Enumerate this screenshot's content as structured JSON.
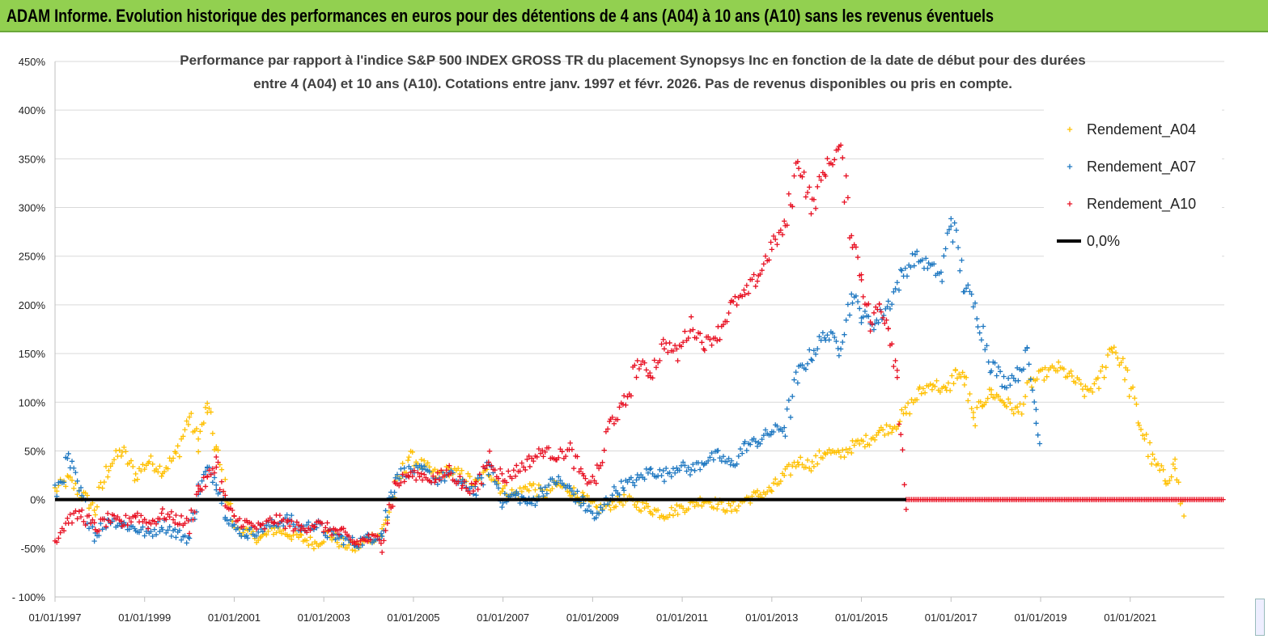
{
  "banner": {
    "title": "ADAM Informe. Evolution historique des performances en euros pour des détentions de 4 ans (A04) à 10 ans (A10) sans les revenus éventuels",
    "color": "#92d050"
  },
  "chart_data": {
    "type": "scatter",
    "title_lines": [
      "Performance par rapport à l'indice S&P 500 INDEX GROSS TR  du placement Synopsys Inc en fonction de la date de début pour des durées",
      "entre 4 (A04) et 10 ans (A10). Cotations entre janv. 1997 et févr. 2026. Pas de revenus disponibles ou pris en compte."
    ],
    "x_range": [
      1997.0,
      2023.1
    ],
    "y_range": [
      -100,
      450
    ],
    "y_ticks": [
      {
        "v": -100,
        "label": "- 100%"
      },
      {
        "v": -50,
        "label": "-50%"
      },
      {
        "v": 0,
        "label": "0%"
      },
      {
        "v": 50,
        "label": "50%"
      },
      {
        "v": 100,
        "label": "100%"
      },
      {
        "v": 150,
        "label": "150%"
      },
      {
        "v": 200,
        "label": "200%"
      },
      {
        "v": 250,
        "label": "250%"
      },
      {
        "v": 300,
        "label": "300%"
      },
      {
        "v": 350,
        "label": "350%"
      },
      {
        "v": 400,
        "label": "400%"
      },
      {
        "v": 450,
        "label": "450%"
      }
    ],
    "x_ticks": [
      {
        "v": 1997,
        "label": "01/01/1997"
      },
      {
        "v": 1999,
        "label": "01/01/1999"
      },
      {
        "v": 2001,
        "label": "01/01/2001"
      },
      {
        "v": 2003,
        "label": "01/01/2003"
      },
      {
        "v": 2005,
        "label": "01/01/2005"
      },
      {
        "v": 2007,
        "label": "01/01/2007"
      },
      {
        "v": 2009,
        "label": "01/01/2009"
      },
      {
        "v": 2011,
        "label": "01/01/2011"
      },
      {
        "v": 2013,
        "label": "01/01/2013"
      },
      {
        "v": 2015,
        "label": "01/01/2015"
      },
      {
        "v": 2017,
        "label": "01/01/2017"
      },
      {
        "v": 2019,
        "label": "01/01/2019"
      },
      {
        "v": 2021,
        "label": "01/01/2021"
      }
    ],
    "legend": [
      "Rendement_A04",
      "Rendement_A07",
      "Rendement_A10",
      "0,0%"
    ],
    "legend_position": "top-right",
    "series": [
      {
        "name": "Rendement_A04",
        "color": "#ffc000",
        "x": [
          1997.0,
          1997.3,
          1997.6,
          1997.9,
          1998.2,
          1998.5,
          1998.8,
          1999.1,
          1999.4,
          1999.7,
          2000.0,
          2000.2,
          2000.4,
          2000.6,
          2000.8,
          2001.0,
          2001.3,
          2001.6,
          2001.9,
          2002.2,
          2002.5,
          2002.8,
          2003.1,
          2003.4,
          2003.7,
          2004.0,
          2004.3,
          2004.6,
          2004.9,
          2005.2,
          2005.5,
          2005.8,
          2006.1,
          2006.4,
          2006.7,
          2007.0,
          2007.3,
          2007.6,
          2007.9,
          2008.2,
          2008.5,
          2008.8,
          2009.1,
          2009.4,
          2009.7,
          2010.0,
          2010.3,
          2010.6,
          2010.9,
          2011.2,
          2011.5,
          2011.8,
          2012.1,
          2012.4,
          2012.7,
          2013.0,
          2013.3,
          2013.6,
          2013.9,
          2014.2,
          2014.5,
          2014.8,
          2015.1,
          2015.4,
          2015.7,
          2016.0,
          2016.3,
          2016.6,
          2016.9,
          2017.1,
          2017.3,
          2017.5,
          2017.7,
          2017.9,
          2018.2,
          2018.5,
          2018.8,
          2019.1,
          2019.4,
          2019.7,
          2020.0,
          2020.3,
          2020.6,
          2020.9,
          2021.2,
          2021.5,
          2021.8,
          2022.0,
          2022.2
        ],
        "y": [
          10,
          20,
          5,
          -10,
          35,
          50,
          25,
          40,
          30,
          45,
          85,
          60,
          95,
          50,
          10,
          -25,
          -35,
          -40,
          -30,
          -35,
          -40,
          -45,
          -35,
          -45,
          -50,
          -40,
          -35,
          10,
          45,
          35,
          25,
          30,
          25,
          15,
          30,
          10,
          5,
          15,
          5,
          15,
          10,
          0,
          -10,
          -5,
          0,
          -5,
          -10,
          -15,
          -10,
          -5,
          0,
          -5,
          -10,
          0,
          5,
          10,
          25,
          40,
          35,
          50,
          45,
          55,
          60,
          70,
          75,
          90,
          110,
          120,
          110,
          130,
          125,
          80,
          100,
          110,
          100,
          90,
          120,
          130,
          135,
          125,
          110,
          120,
          160,
          130,
          80,
          40,
          20,
          35,
          -20
        ]
      },
      {
        "name": "Rendement_A07",
        "color": "#1f78c1",
        "x": [
          1997.0,
          1997.3,
          1997.6,
          1997.9,
          1998.2,
          1998.5,
          1998.8,
          1999.1,
          1999.4,
          1999.7,
          2000.0,
          2000.2,
          2000.4,
          2000.6,
          2000.8,
          2001.0,
          2001.3,
          2001.6,
          2001.9,
          2002.2,
          2002.5,
          2002.8,
          2003.1,
          2003.4,
          2003.7,
          2004.0,
          2004.3,
          2004.6,
          2004.9,
          2005.2,
          2005.5,
          2005.8,
          2006.1,
          2006.4,
          2006.7,
          2007.0,
          2007.3,
          2007.6,
          2007.9,
          2008.2,
          2008.5,
          2008.8,
          2009.1,
          2009.4,
          2009.7,
          2010.0,
          2010.3,
          2010.6,
          2010.9,
          2011.2,
          2011.5,
          2011.8,
          2012.1,
          2012.4,
          2012.7,
          2013.0,
          2013.3,
          2013.6,
          2013.9,
          2014.2,
          2014.5,
          2014.8,
          2015.0,
          2015.3,
          2015.6,
          2015.9,
          2016.2,
          2016.5,
          2016.8,
          2017.0,
          2017.3,
          2017.6,
          2017.9,
          2018.2,
          2018.5,
          2018.7,
          2018.9,
          2019.0
        ],
        "y": [
          5,
          40,
          0,
          -35,
          -20,
          -25,
          -30,
          -35,
          -25,
          -35,
          -40,
          10,
          30,
          20,
          -10,
          -30,
          -35,
          -30,
          -25,
          -20,
          -30,
          -25,
          -35,
          -40,
          -45,
          -40,
          -35,
          25,
          30,
          30,
          20,
          25,
          15,
          10,
          35,
          0,
          5,
          -5,
          10,
          20,
          10,
          -5,
          -20,
          5,
          15,
          20,
          30,
          25,
          35,
          30,
          40,
          45,
          35,
          55,
          60,
          70,
          75,
          130,
          150,
          170,
          160,
          210,
          190,
          180,
          200,
          230,
          250,
          240,
          230,
          290,
          220,
          190,
          140,
          120,
          130,
          150,
          90,
          50
        ]
      },
      {
        "name": "Rendement_A10",
        "color": "#e81123",
        "x": [
          1997.0,
          1997.3,
          1997.6,
          1997.9,
          1998.2,
          1998.5,
          1998.8,
          1999.1,
          1999.4,
          1999.7,
          2000.0,
          2000.2,
          2000.4,
          2000.6,
          2000.8,
          2001.0,
          2001.3,
          2001.6,
          2001.9,
          2002.2,
          2002.5,
          2002.8,
          2003.1,
          2003.4,
          2003.7,
          2004.0,
          2004.3,
          2004.6,
          2004.9,
          2005.2,
          2005.5,
          2005.8,
          2006.1,
          2006.4,
          2006.7,
          2007.0,
          2007.3,
          2007.6,
          2007.9,
          2008.2,
          2008.5,
          2008.8,
          2009.1,
          2009.4,
          2009.7,
          2010.0,
          2010.3,
          2010.6,
          2010.9,
          2011.2,
          2011.5,
          2011.8,
          2012.1,
          2012.4,
          2012.7,
          2013.0,
          2013.3,
          2013.6,
          2013.9,
          2014.2,
          2014.5,
          2014.8,
          2015.0,
          2015.2,
          2015.4,
          2015.6,
          2015.8,
          2016.0
        ],
        "y": [
          -40,
          -20,
          -15,
          -30,
          -20,
          -25,
          -15,
          -25,
          -15,
          -20,
          -25,
          10,
          20,
          40,
          -5,
          -20,
          -25,
          -30,
          -20,
          -25,
          -30,
          -25,
          -30,
          -35,
          -45,
          -40,
          -40,
          15,
          25,
          25,
          20,
          30,
          15,
          10,
          45,
          20,
          30,
          40,
          50,
          45,
          50,
          20,
          20,
          80,
          95,
          140,
          130,
          160,
          150,
          180,
          160,
          170,
          200,
          210,
          230,
          260,
          280,
          350,
          300,
          340,
          360,
          270,
          230,
          180,
          200,
          180,
          130,
          0
        ]
      },
      {
        "name": "0,0%",
        "color": "#000000",
        "x": [
          1997.0,
          2016.0
        ],
        "y": [
          0,
          0
        ]
      }
    ],
    "zero_markers": {
      "series": "Rendement_A10",
      "x": [
        2016.0,
        2023.1
      ],
      "y": 0
    }
  }
}
